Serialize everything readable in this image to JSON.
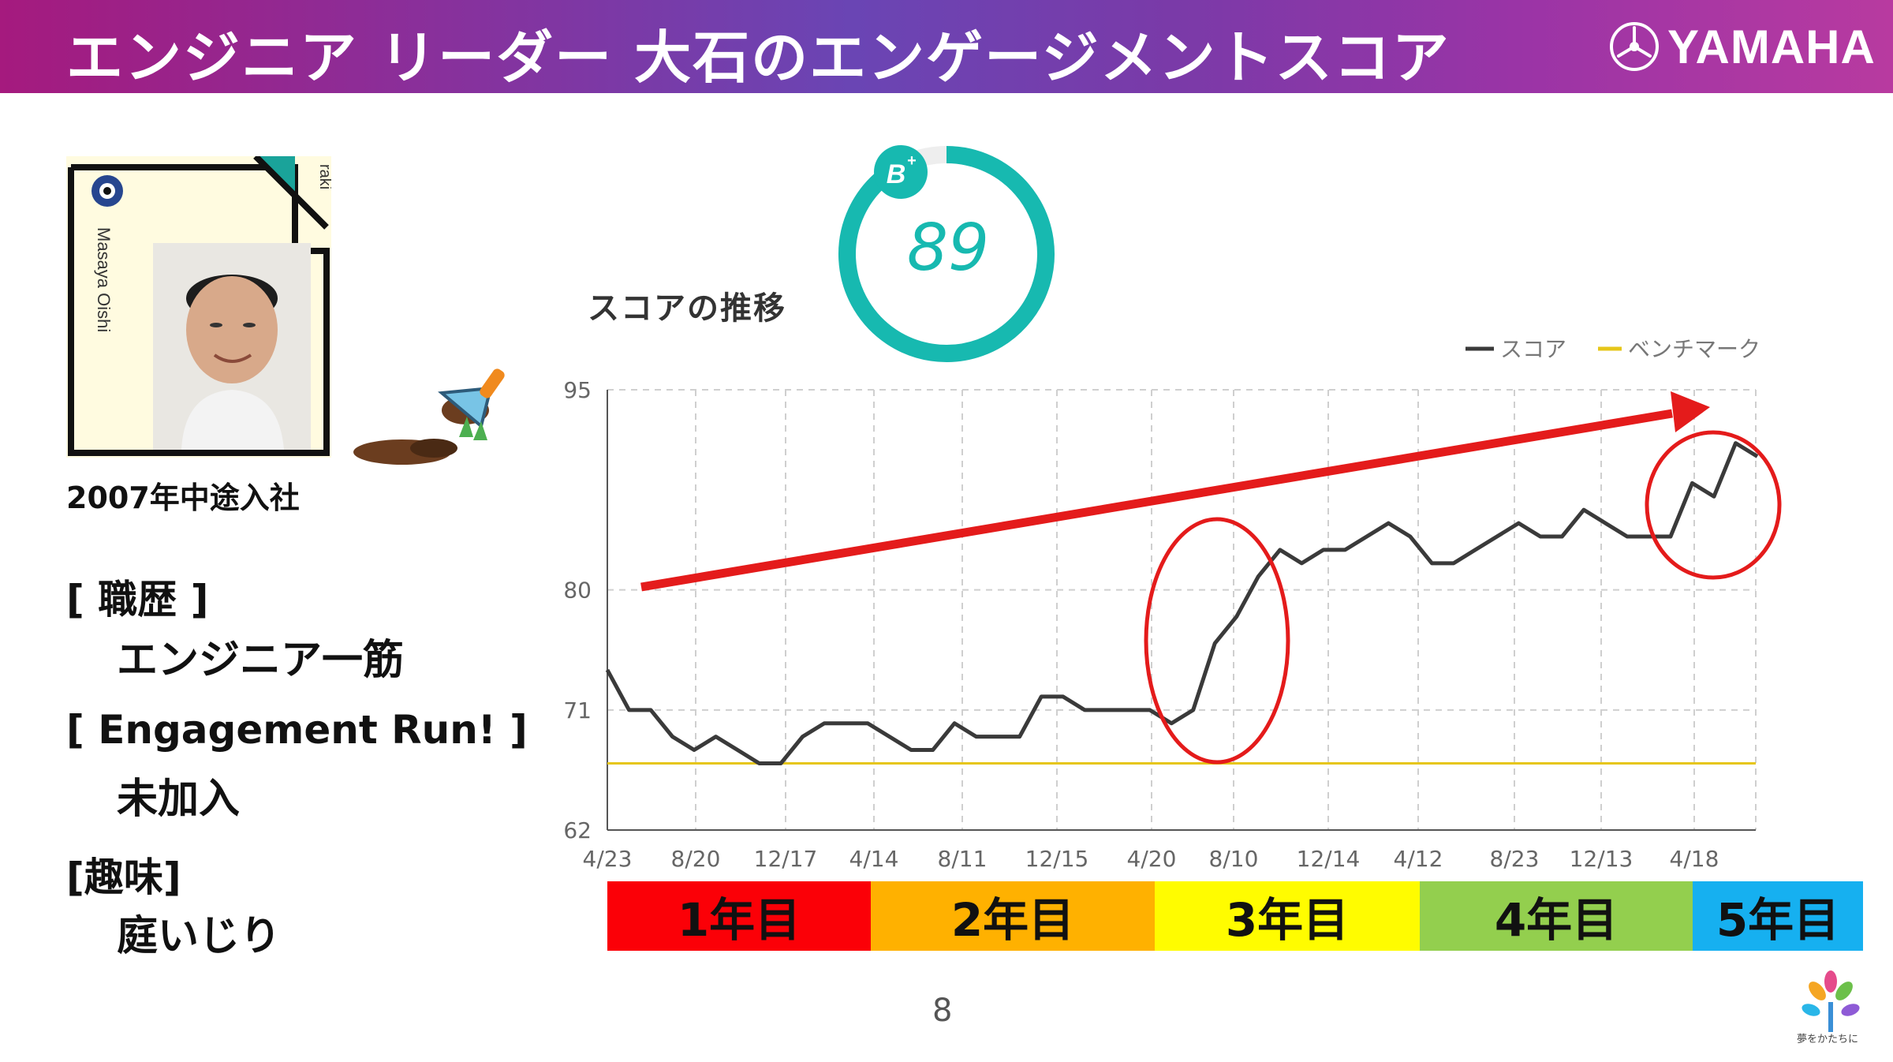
{
  "header": {
    "title": "エンジニア リーダー 大石のエンゲージメントスコア",
    "logo_text": "YAMAHA"
  },
  "profile": {
    "photo_caption_name": "Masaya Oishi",
    "photo_caption_side": "raki",
    "joined": "2007年中途入社",
    "sections": [
      {
        "label": "[ 職歴 ]",
        "value": "エンジニア一筋"
      },
      {
        "label": "[ Engagement Run! ]",
        "value": "未加入"
      },
      {
        "label": "[趣味]",
        "value": "庭いじり"
      }
    ]
  },
  "score": {
    "label": "スコアの推移",
    "value": "89",
    "grade": "B",
    "grade_suffix": "+",
    "fraction": 0.89
  },
  "chart_data": {
    "type": "line",
    "legend": [
      "スコア",
      "ベンチマーク"
    ],
    "x_tick_labels": [
      "4/23",
      "8/20",
      "12/17",
      "4/14",
      "8/11",
      "12/15",
      "4/20",
      "8/10",
      "12/14",
      "4/12",
      "8/23",
      "12/13",
      "4/18"
    ],
    "y_ticks": [
      62,
      71,
      80,
      95
    ],
    "ylim": [
      62,
      95
    ],
    "grid": true,
    "series": [
      {
        "name": "スコア",
        "color": "#3a3a3a",
        "values": [
          74,
          71,
          71,
          69,
          68,
          69,
          68,
          67,
          67,
          69,
          70,
          70,
          70,
          69,
          68,
          68,
          70,
          69,
          69,
          69,
          72,
          72,
          71,
          71,
          71,
          71,
          70,
          71,
          76,
          78,
          81,
          83,
          82,
          83,
          83,
          84,
          85,
          84,
          82,
          82,
          83,
          84,
          85,
          84,
          84,
          86,
          85,
          84,
          84,
          84,
          88,
          87,
          91,
          90
        ]
      },
      {
        "name": "ベンチマーク",
        "color": "#e6c619",
        "values": [
          67,
          67
        ]
      }
    ],
    "year_bands": [
      {
        "label": "1年目",
        "color": "#fb0007"
      },
      {
        "label": "2年目",
        "color": "#ffb100"
      },
      {
        "label": "3年目",
        "color": "#fffc00"
      },
      {
        "label": "4年目",
        "color": "#93cf4e"
      },
      {
        "label": "5年目",
        "color": "#16b0f0"
      }
    ]
  },
  "colors": {
    "accent": "#17b9b0",
    "annotation": "#e41b1b"
  },
  "page": {
    "number": "8",
    "corner_logo_text": "夢をかたちに"
  }
}
